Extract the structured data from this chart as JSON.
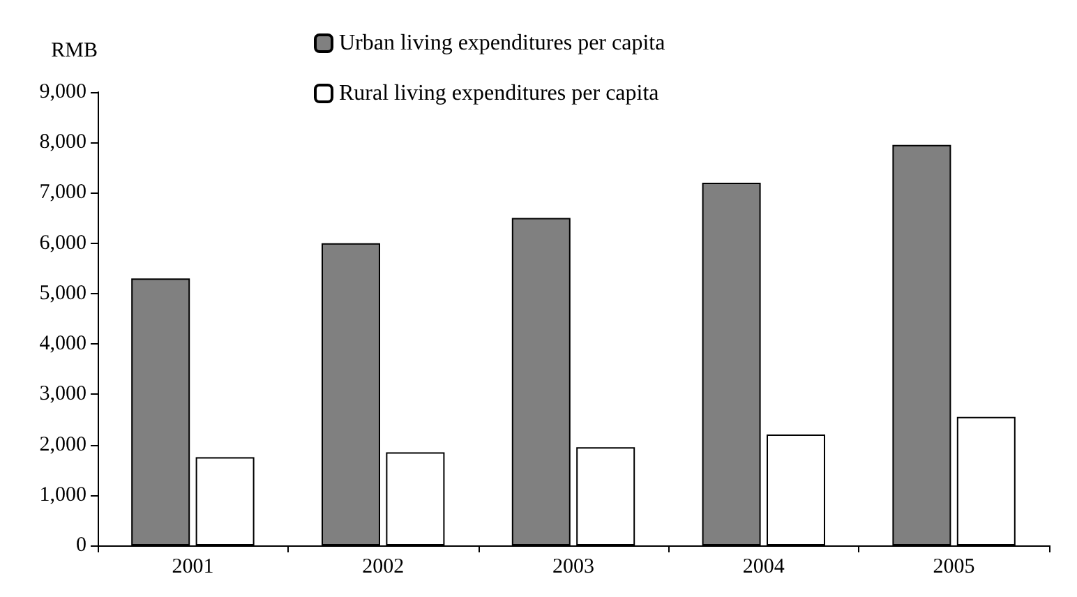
{
  "chart_data": {
    "type": "bar",
    "ylabel": "RMB",
    "categories": [
      "2001",
      "2002",
      "2003",
      "2004",
      "2005"
    ],
    "series": [
      {
        "name": "Urban living expenditures per capita",
        "color": "#808080",
        "values": [
          5300,
          6000,
          6500,
          7200,
          7950
        ]
      },
      {
        "name": "Rural living expenditures per capita",
        "color": "#ffffff",
        "values": [
          1750,
          1850,
          1950,
          2200,
          2550
        ]
      }
    ],
    "ylim": [
      0,
      9000
    ],
    "yticks": [
      {
        "value": 0,
        "label": "0"
      },
      {
        "value": 1000,
        "label": "1,000"
      },
      {
        "value": 2000,
        "label": "2,000"
      },
      {
        "value": 3000,
        "label": "3,000"
      },
      {
        "value": 4000,
        "label": "4,000"
      },
      {
        "value": 5000,
        "label": "5,000"
      },
      {
        "value": 6000,
        "label": "6,000"
      },
      {
        "value": 7000,
        "label": "7,000"
      },
      {
        "value": 8000,
        "label": "8,000"
      },
      {
        "value": 9000,
        "label": "9,000"
      }
    ],
    "grid": false,
    "legend": "top"
  }
}
